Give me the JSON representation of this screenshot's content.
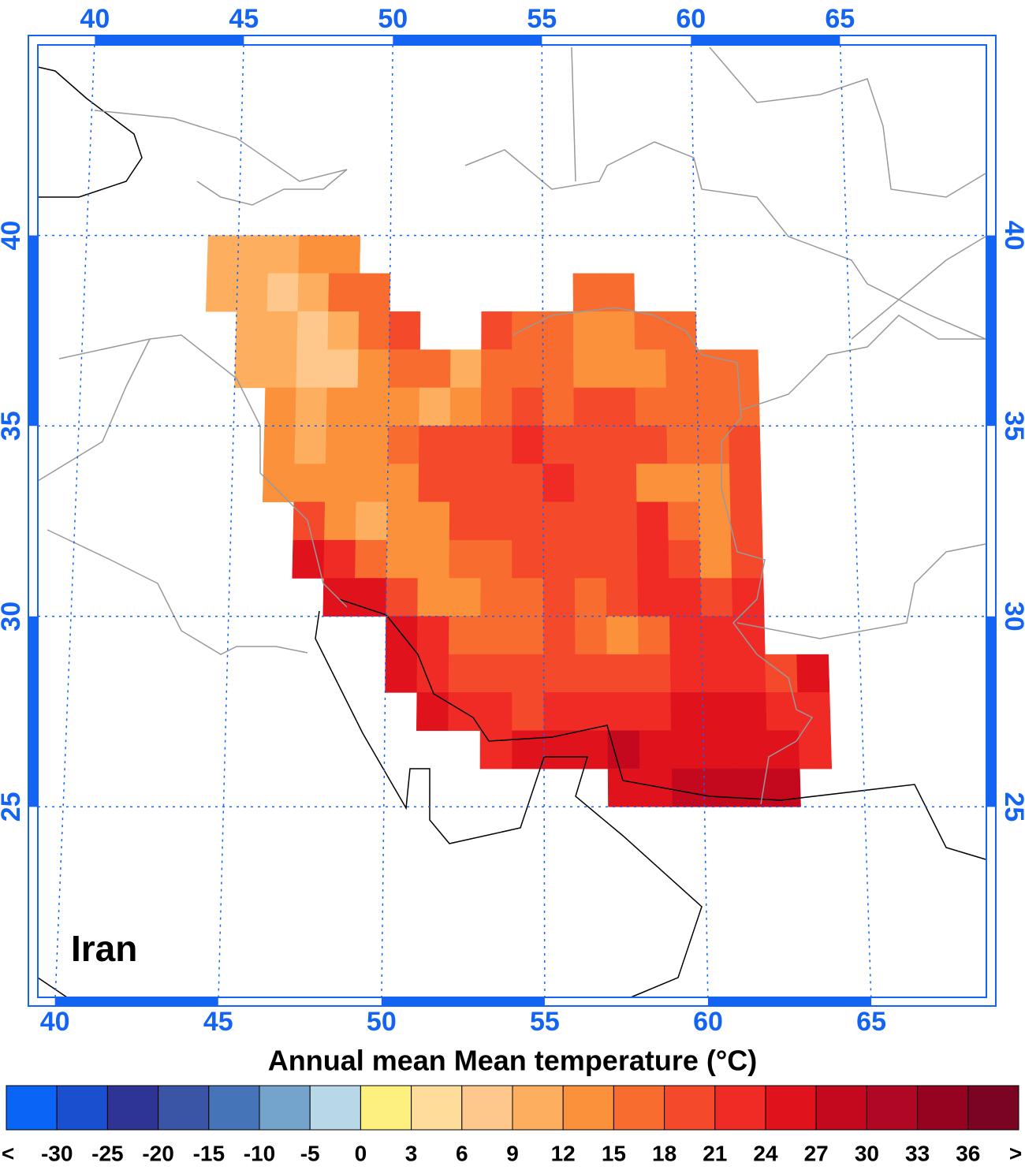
{
  "chart_data": {
    "type": "gridded-map",
    "title": "Annual mean Mean temperature (°C)",
    "region_label": "Iran",
    "xticks": [
      40,
      45,
      50,
      55,
      60,
      65
    ],
    "yticks": [
      25,
      30,
      35,
      40
    ],
    "xlim": [
      38.81,
      69.19
    ],
    "ylim": [
      20,
      45
    ],
    "grid": true,
    "cell_size": 1,
    "cell_lon0": 44,
    "rows": [
      {
        "lat": 39,
        "values": [
          11,
          10,
          10,
          14,
          14,
          null,
          null,
          null,
          null,
          null,
          null,
          null,
          null,
          null,
          null,
          null,
          null,
          null,
          null,
          null
        ]
      },
      {
        "lat": 38,
        "values": [
          11,
          10,
          8,
          11,
          15,
          17,
          null,
          null,
          null,
          null,
          null,
          null,
          17,
          15,
          null,
          null,
          null,
          null,
          null,
          null
        ]
      },
      {
        "lat": 37,
        "values": [
          null,
          10,
          10,
          8,
          11,
          15,
          18,
          null,
          null,
          18,
          17,
          15,
          14,
          13,
          15,
          17,
          null,
          null,
          null,
          null
        ]
      },
      {
        "lat": 36,
        "values": [
          null,
          11,
          10,
          8,
          8,
          12,
          15,
          17,
          11,
          17,
          15,
          15,
          13,
          13,
          14,
          16,
          17,
          16,
          null,
          null
        ]
      },
      {
        "lat": 35,
        "values": [
          null,
          null,
          12,
          11,
          12,
          14,
          14,
          11,
          14,
          16,
          18,
          17,
          18,
          19,
          17,
          16,
          15,
          16,
          null,
          null
        ]
      },
      {
        "lat": 34,
        "values": [
          null,
          null,
          12,
          11,
          12,
          14,
          17,
          19,
          19,
          20,
          21,
          19,
          19,
          18,
          18,
          16,
          15,
          19,
          null,
          null
        ]
      },
      {
        "lat": 33,
        "values": [
          null,
          null,
          14,
          13,
          12,
          13,
          14,
          18,
          19,
          20,
          19,
          21,
          18,
          19,
          13,
          14,
          12,
          19,
          null,
          null
        ]
      },
      {
        "lat": 32,
        "values": [
          null,
          null,
          null,
          19,
          14,
          11,
          12,
          14,
          18,
          18,
          19,
          18,
          18,
          19,
          21,
          15,
          13,
          19,
          null,
          null
        ]
      },
      {
        "lat": 31,
        "values": [
          null,
          null,
          null,
          24,
          22,
          15,
          12,
          12,
          16,
          17,
          18,
          18,
          19,
          20,
          21,
          18,
          14,
          20,
          null,
          null
        ]
      },
      {
        "lat": 30,
        "values": [
          null,
          null,
          null,
          null,
          25,
          24,
          18,
          13,
          14,
          16,
          17,
          18,
          17,
          18,
          21,
          21,
          19,
          21,
          null,
          null
        ]
      },
      {
        "lat": 29,
        "values": [
          null,
          null,
          null,
          null,
          null,
          null,
          24,
          21,
          15,
          15,
          17,
          18,
          16,
          14,
          15,
          21,
          21,
          21,
          null,
          null
        ]
      },
      {
        "lat": 28,
        "values": [
          null,
          null,
          null,
          null,
          null,
          null,
          24,
          22,
          19,
          18,
          18,
          19,
          19,
          19,
          20,
          21,
          21,
          21,
          20,
          24
        ]
      },
      {
        "lat": 27,
        "values": [
          null,
          null,
          null,
          null,
          null,
          null,
          null,
          24,
          23,
          22,
          20,
          21,
          21,
          22,
          22,
          24,
          26,
          26,
          23,
          22
        ]
      },
      {
        "lat": 26,
        "values": [
          null,
          null,
          null,
          null,
          null,
          null,
          null,
          null,
          null,
          23,
          24,
          24,
          25,
          27,
          25,
          24,
          25,
          25,
          24,
          23
        ]
      },
      {
        "lat": 25,
        "values": [
          null,
          null,
          null,
          null,
          null,
          null,
          null,
          null,
          null,
          null,
          null,
          null,
          null,
          26,
          25,
          27,
          28,
          28,
          27,
          null
        ]
      }
    ],
    "colorbar": {
      "below_label": "<",
      "above_label": ">",
      "levels": [
        -30,
        -25,
        -20,
        -15,
        -10,
        -5,
        0,
        3,
        6,
        9,
        12,
        15,
        18,
        21,
        24,
        27,
        30,
        33,
        36
      ],
      "colors": [
        "#0a64f5",
        "#1a4fcf",
        "#2e3494",
        "#3a55a5",
        "#4674b8",
        "#74a3cc",
        "#b8d8e8",
        "#fdf07e",
        "#fedc9a",
        "#fec88c",
        "#fdae5f",
        "#fc913b",
        "#f86c30",
        "#f44a2b",
        "#f02a24",
        "#e0131d",
        "#c4091f",
        "#af0724",
        "#960321",
        "#7b0422"
      ]
    }
  }
}
